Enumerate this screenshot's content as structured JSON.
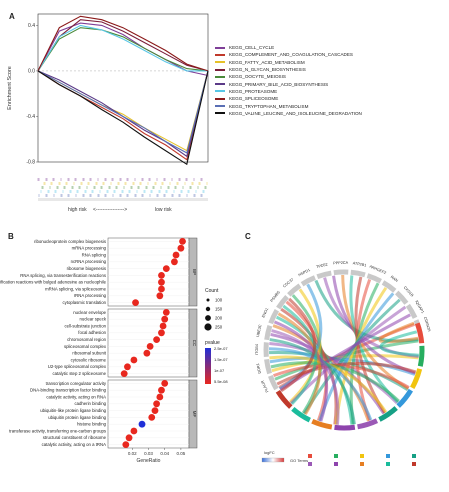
{
  "panel_labels": {
    "a": "A",
    "b": "B",
    "c": "C"
  },
  "colors": {
    "gsea": [
      "#7f3f98",
      "#c0392b",
      "#e6c229",
      "#7b1e3a",
      "#4a8a3a",
      "#5b3a88",
      "#58c7e6",
      "#8b1a1a",
      "#5a6fb5",
      "#111111"
    ],
    "dot_high": "#e8281f",
    "dot_low": "#1f2fd8",
    "strip_bp": "#b8b8b8"
  },
  "chart_data": [
    {
      "type": "line",
      "title": "",
      "ylabel": "Enrichment Score",
      "ylim": [
        -0.8,
        0.5
      ],
      "yticks": [
        "0.4",
        "0.0",
        "-0.4",
        "-0.8"
      ],
      "rank_axis": {
        "left": "high risk",
        "middle": "<----------------->",
        "right": "low risk"
      },
      "series": [
        {
          "name": "KEGG_CELL_CYCLE",
          "values": [
            0,
            0.35,
            0.42,
            0.4,
            0.32,
            0.2,
            0.1,
            0.0,
            -0.04
          ]
        },
        {
          "name": "KEGG_COMPLEMENT_AND_COAGULATION_CASCADES",
          "values": [
            0,
            -0.12,
            -0.22,
            -0.32,
            -0.42,
            -0.55,
            -0.65,
            -0.78,
            0
          ]
        },
        {
          "name": "KEGG_FATTY_ACID_METABOLISM",
          "values": [
            0,
            -0.1,
            -0.2,
            -0.3,
            -0.38,
            -0.5,
            -0.6,
            -0.7,
            0
          ]
        },
        {
          "name": "KEGG_N_GLYCAN_BIOSYNTHESIS",
          "values": [
            0,
            0.3,
            0.45,
            0.43,
            0.35,
            0.25,
            0.15,
            0.05,
            0
          ]
        },
        {
          "name": "KEGG_OOCYTE_MEIOSIS",
          "values": [
            0,
            0.28,
            0.38,
            0.36,
            0.3,
            0.2,
            0.1,
            0.02,
            0
          ]
        },
        {
          "name": "KEGG_PRIMARY_BILE_ACID_BIOSYNTHESIS",
          "values": [
            0,
            -0.08,
            -0.18,
            -0.28,
            -0.4,
            -0.52,
            -0.62,
            -0.75,
            0
          ]
        },
        {
          "name": "KEGG_PROTEASOME",
          "values": [
            0,
            0.3,
            0.4,
            0.36,
            0.28,
            0.18,
            0.08,
            0.0,
            0
          ]
        },
        {
          "name": "KEGG_SPLICEOSOME",
          "values": [
            0,
            0.38,
            0.48,
            0.45,
            0.38,
            0.28,
            0.18,
            0.06,
            0
          ]
        },
        {
          "name": "KEGG_TRYPTOPHAN_METABOLISM",
          "values": [
            0,
            -0.1,
            -0.2,
            -0.3,
            -0.4,
            -0.5,
            -0.62,
            -0.72,
            0
          ]
        },
        {
          "name": "KEGG_VALINE_LEUCINE_AND_ISOLEUCINE_DEGRADATION",
          "values": [
            0,
            -0.12,
            -0.22,
            -0.34,
            -0.45,
            -0.58,
            -0.7,
            -0.82,
            0
          ]
        }
      ]
    },
    {
      "type": "scatter",
      "title": "",
      "xlabel": "GeneRatio",
      "xlim": [
        0.005,
        0.055
      ],
      "xticks": [
        0.02,
        0.03,
        0.04,
        0.05
      ],
      "legend": {
        "count_title": "Count",
        "counts": [
          100,
          150,
          200,
          250
        ],
        "pvalue_title": "pvalue",
        "pvalues": [
          "2.5e-07",
          "1.5e-07",
          "1e-07",
          "5.5e-08"
        ]
      },
      "groups": [
        {
          "name": "BP",
          "terms": [
            {
              "term": "ribonucleoprotein complex biogenesis",
              "x": 0.051,
              "pvalue_level": 1
            },
            {
              "term": "mRNA processing",
              "x": 0.05,
              "pvalue_level": 1
            },
            {
              "term": "RNA splicing",
              "x": 0.047,
              "pvalue_level": 1
            },
            {
              "term": "ncRNA processing",
              "x": 0.046,
              "pvalue_level": 1
            },
            {
              "term": "ribosome biogenesis",
              "x": 0.041,
              "pvalue_level": 1
            },
            {
              "term": "RNA splicing, via transesterification reactions",
              "x": 0.038,
              "pvalue_level": 1
            },
            {
              "term": "RNA splicing, via transesterification reactions with bulged adenosine as nucleophile",
              "x": 0.038,
              "pvalue_level": 1
            },
            {
              "term": "mRNA splicing, via spliceosome",
              "x": 0.038,
              "pvalue_level": 1
            },
            {
              "term": "rRNA processing",
              "x": 0.037,
              "pvalue_level": 1
            },
            {
              "term": "cytoplasmic translation",
              "x": 0.022,
              "pvalue_level": 1
            }
          ]
        },
        {
          "name": "CC",
          "terms": [
            {
              "term": "nuclear envelope",
              "x": 0.041,
              "pvalue_level": 1
            },
            {
              "term": "nuclear speck",
              "x": 0.04,
              "pvalue_level": 1
            },
            {
              "term": "cell-substrate junction",
              "x": 0.039,
              "pvalue_level": 1
            },
            {
              "term": "focal adhesion",
              "x": 0.038,
              "pvalue_level": 1
            },
            {
              "term": "chromosomal region",
              "x": 0.035,
              "pvalue_level": 1
            },
            {
              "term": "spliceosomal complex",
              "x": 0.031,
              "pvalue_level": 1
            },
            {
              "term": "ribosomal subunit",
              "x": 0.029,
              "pvalue_level": 1
            },
            {
              "term": "cytosolic ribosome",
              "x": 0.021,
              "pvalue_level": 1
            },
            {
              "term": "U2-type spliceosomal complex",
              "x": 0.017,
              "pvalue_level": 1
            },
            {
              "term": "catalytic step 2 spliceosome",
              "x": 0.015,
              "pvalue_level": 1
            }
          ]
        },
        {
          "name": "MF",
          "terms": [
            {
              "term": "transcription coregulator activity",
              "x": 0.04,
              "pvalue_level": 1
            },
            {
              "term": "DNA-binding transcription factor binding",
              "x": 0.038,
              "pvalue_level": 1
            },
            {
              "term": "catalytic activity, acting on RNA",
              "x": 0.037,
              "pvalue_level": 1
            },
            {
              "term": "cadherin binding",
              "x": 0.035,
              "pvalue_level": 1
            },
            {
              "term": "ubiquitin-like protein ligase binding",
              "x": 0.034,
              "pvalue_level": 1
            },
            {
              "term": "ubiquitin protein ligase binding",
              "x": 0.032,
              "pvalue_level": 1
            },
            {
              "term": "histone binding",
              "x": 0.026,
              "pvalue_level": 0.2
            },
            {
              "term": "transferase activity, transferring one-carbon groups",
              "x": 0.021,
              "pvalue_level": 1
            },
            {
              "term": "structural constituent of ribosome",
              "x": 0.018,
              "pvalue_level": 1
            },
            {
              "term": "catalytic activity, acting on a tRNA",
              "x": 0.016,
              "pvalue_level": 1
            }
          ]
        }
      ]
    },
    {
      "type": "chord",
      "genes": [
        "PLAUR",
        "DDR1",
        "ITGB4",
        "UBE3C",
        "ENO1",
        "PSMB5",
        "CDC37",
        "HSPD1",
        "TPD52",
        "PPP2CA",
        "ATP2B1",
        "ARHGEF2",
        "RAN",
        "CKS1B",
        "IQGAP1",
        "CDKN2A"
      ],
      "legend": {
        "logfc_title": "logFC",
        "go_title": "GO Terms",
        "go_colors": [
          "#e74c3c",
          "#27ae60",
          "#f1c40f",
          "#3498db",
          "#16a085",
          "#9b59b6",
          "#8e44ad",
          "#e67e22",
          "#1abc9c",
          "#c0392b"
        ]
      }
    }
  ]
}
